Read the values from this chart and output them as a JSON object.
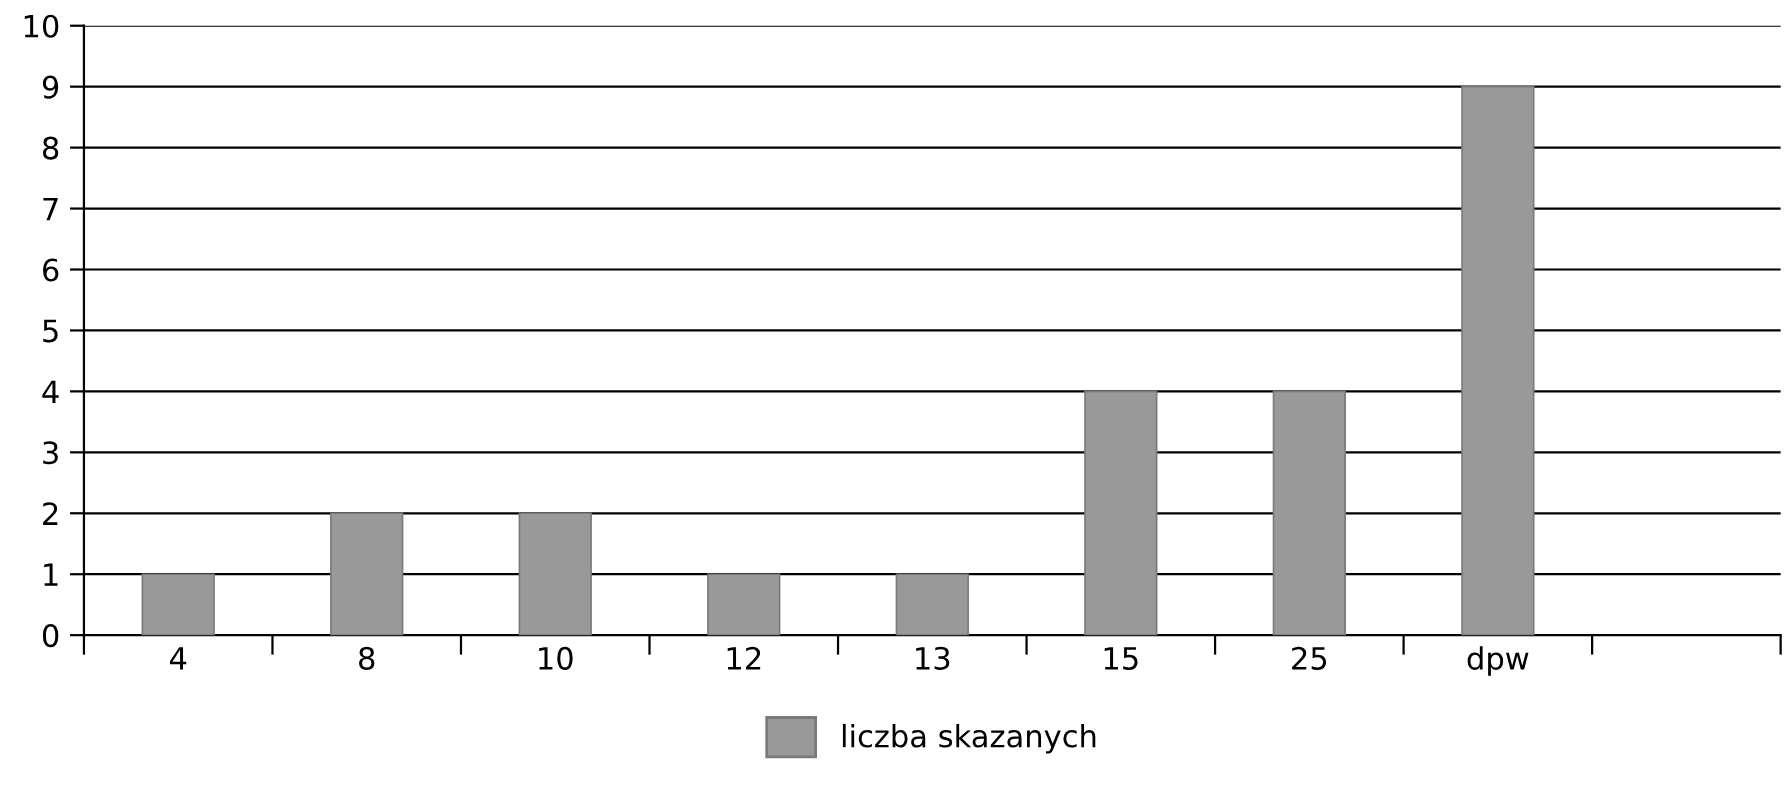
{
  "chart_data": {
    "type": "bar",
    "categories": [
      "4",
      "8",
      "10",
      "12",
      "13",
      "15",
      "25",
      "dpw",
      null
    ],
    "series": [
      {
        "name": "liczba skazanych",
        "color": "#999999",
        "values": [
          1,
          2,
          2,
          1,
          1,
          4,
          4,
          9,
          null
        ]
      }
    ],
    "ylim": [
      0,
      10
    ],
    "yticks": [
      0,
      1,
      2,
      3,
      4,
      5,
      6,
      7,
      8,
      9,
      10
    ],
    "grid": "y",
    "legend": "bottom"
  }
}
